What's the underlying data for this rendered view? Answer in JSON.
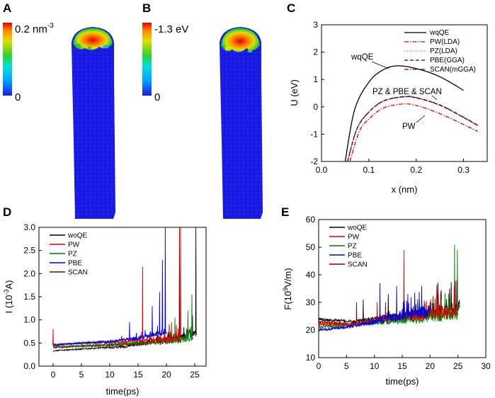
{
  "panels": {
    "A": {
      "letter": "A",
      "cbar_max": "0.2 nm",
      "cbar_max_sup": "-3",
      "cbar_min": "0"
    },
    "B": {
      "letter": "B",
      "cbar_max": "-1.3 eV",
      "cbar_min": "0"
    },
    "C": {
      "letter": "C"
    },
    "D": {
      "letter": "D"
    },
    "E": {
      "letter": "E"
    }
  },
  "colors": {
    "woQE": "#000000",
    "PW": "#e00000",
    "PZ": "#008000",
    "PBE": "#0000e0",
    "SCAN": "#8b0000",
    "tip": "#1a1ae6"
  },
  "chart_data": [
    {
      "id": "C",
      "type": "line",
      "xlabel": "x (nm)",
      "ylabel": "U (eV)",
      "xlim": [
        0.0,
        0.35
      ],
      "ylim": [
        -2,
        3
      ],
      "xticks": [
        "0.0",
        "0.1",
        "0.2",
        "0.3"
      ],
      "yticks": [
        "-2",
        "-1",
        "0",
        "1",
        "2",
        "3"
      ],
      "legend": [
        "wqQE",
        "PW(LDA)",
        "PZ(LDA)",
        "PBE(GGA)",
        "SCAN(mGGA)"
      ],
      "annotations": [
        "wqQE",
        "PZ & PBE & SCAN",
        "PW"
      ],
      "series": [
        {
          "name": "wqQE",
          "x": [
            0.05,
            0.07,
            0.1,
            0.13,
            0.16,
            0.2,
            0.25,
            0.3
          ],
          "y": [
            -2.0,
            -0.1,
            0.9,
            1.35,
            1.5,
            1.4,
            1.1,
            0.6
          ]
        },
        {
          "name": "PW(LDA)",
          "x": [
            0.06,
            0.08,
            0.1,
            0.13,
            0.17,
            0.2,
            0.25,
            0.3,
            0.33
          ],
          "y": [
            -2.0,
            -0.9,
            -0.45,
            -0.05,
            0.1,
            0.05,
            -0.25,
            -0.65,
            -0.9
          ]
        },
        {
          "name": "PZ(LDA)",
          "x": [
            0.055,
            0.075,
            0.1,
            0.13,
            0.17,
            0.2,
            0.25,
            0.3,
            0.33
          ],
          "y": [
            -2.0,
            -0.8,
            -0.2,
            0.2,
            0.35,
            0.32,
            0.05,
            -0.4,
            -0.7
          ]
        },
        {
          "name": "PBE(GGA)",
          "x": [
            0.055,
            0.075,
            0.1,
            0.13,
            0.17,
            0.2,
            0.25,
            0.3,
            0.33
          ],
          "y": [
            -2.0,
            -0.8,
            -0.2,
            0.2,
            0.36,
            0.33,
            0.06,
            -0.39,
            -0.68
          ]
        },
        {
          "name": "SCAN(mGGA)",
          "x": [
            0.055,
            0.075,
            0.1,
            0.13,
            0.17,
            0.2,
            0.25,
            0.3,
            0.33
          ],
          "y": [
            -2.0,
            -0.8,
            -0.19,
            0.21,
            0.37,
            0.34,
            0.07,
            -0.38,
            -0.67
          ]
        }
      ]
    },
    {
      "id": "D",
      "type": "line",
      "xlabel": "time(ps)",
      "ylabel": "I (10",
      "ylabel_sup": "-3",
      "ylabel_end": "A)",
      "xlim": [
        -2.5,
        27
      ],
      "ylim": [
        0.0,
        3.0
      ],
      "xticks": [
        "0",
        "5",
        "10",
        "15",
        "20",
        "25"
      ],
      "yticks": [
        "0.0",
        "0.5",
        "1.0",
        "1.5",
        "2.0",
        "2.5",
        "3.0"
      ],
      "legend": [
        "woQE",
        "PW",
        "PZ",
        "PBE",
        "SCAN"
      ],
      "series": [
        {
          "name": "woQE",
          "t_end": 25.3,
          "base": [
            0.33,
            0.38,
            0.42,
            0.55,
            0.7
          ],
          "spikes": [
            [
              24.6,
              1.1
            ],
            [
              25.2,
              3.0
            ]
          ]
        },
        {
          "name": "PW",
          "t_end": 22.5,
          "base": [
            0.47,
            0.5,
            0.52,
            0.55,
            0.6
          ],
          "spikes": [
            [
              0.0,
              0.8
            ],
            [
              15.8,
              2.15
            ],
            [
              20.9,
              0.95
            ],
            [
              22.5,
              3.0
            ]
          ]
        },
        {
          "name": "PZ",
          "t_end": 24.7,
          "base": [
            0.42,
            0.45,
            0.48,
            0.52,
            0.6
          ],
          "spikes": [
            [
              21.5,
              1.05
            ],
            [
              23.8,
              1.2
            ],
            [
              24.5,
              1.55
            ]
          ]
        },
        {
          "name": "PBE",
          "t_end": 20.0,
          "base": [
            0.45,
            0.5,
            0.53,
            0.6,
            0.75
          ],
          "spikes": [
            [
              13.5,
              0.95
            ],
            [
              17.5,
              1.3
            ],
            [
              18.8,
              1.6
            ],
            [
              19.3,
              2.3
            ],
            [
              19.8,
              3.0
            ]
          ]
        },
        {
          "name": "SCAN",
          "t_end": 22.6,
          "base": [
            0.4,
            0.43,
            0.46,
            0.5,
            0.55
          ],
          "spikes": [
            [
              20.5,
              0.9
            ],
            [
              22.3,
              3.0
            ]
          ]
        }
      ]
    },
    {
      "id": "E",
      "type": "line",
      "xlabel": "time(ps)",
      "ylabel": "F(10",
      "ylabel_sup": "9",
      "ylabel_end": "V/m)",
      "xlim": [
        0,
        30
      ],
      "ylim": [
        10,
        60
      ],
      "xticks": [
        "0",
        "5",
        "10",
        "15",
        "20",
        "25",
        "30"
      ],
      "yticks": [
        "10",
        "20",
        "30",
        "40",
        "50",
        "60"
      ],
      "legend": [
        "woQE",
        "PW",
        "PZ",
        "PBE",
        "SCAN"
      ],
      "series": [
        {
          "name": "woQE",
          "t_end": 25.3,
          "base": [
            24,
            23,
            25,
            26,
            28
          ],
          "spikes": [
            [
              8.0,
              31
            ],
            [
              12.5,
              33
            ],
            [
              23.5,
              35
            ],
            [
              24.8,
              38
            ]
          ]
        },
        {
          "name": "PW",
          "t_end": 24.8,
          "base": [
            22,
            22,
            24,
            25,
            27
          ],
          "spikes": [
            [
              10.5,
              30
            ],
            [
              15.3,
              49
            ],
            [
              21.5,
              33
            ]
          ]
        },
        {
          "name": "PZ",
          "t_end": 25.0,
          "base": [
            21,
            22,
            23,
            24,
            26
          ],
          "spikes": [
            [
              18.0,
              29
            ],
            [
              22.0,
              31
            ],
            [
              24.4,
              51
            ],
            [
              24.9,
              49
            ]
          ]
        },
        {
          "name": "PBE",
          "t_end": 20.0,
          "base": [
            20,
            21,
            23,
            25,
            27
          ],
          "spikes": [
            [
              11.0,
              37
            ],
            [
              14.0,
              36
            ],
            [
              16.0,
              33
            ],
            [
              18.5,
              36
            ]
          ]
        },
        {
          "name": "SCAN",
          "t_end": 22.0,
          "base": [
            23,
            22,
            24,
            25,
            27
          ],
          "spikes": [
            [
              6.8,
              30
            ],
            [
              12.0,
              30
            ],
            [
              20.0,
              30
            ]
          ]
        }
      ]
    }
  ]
}
